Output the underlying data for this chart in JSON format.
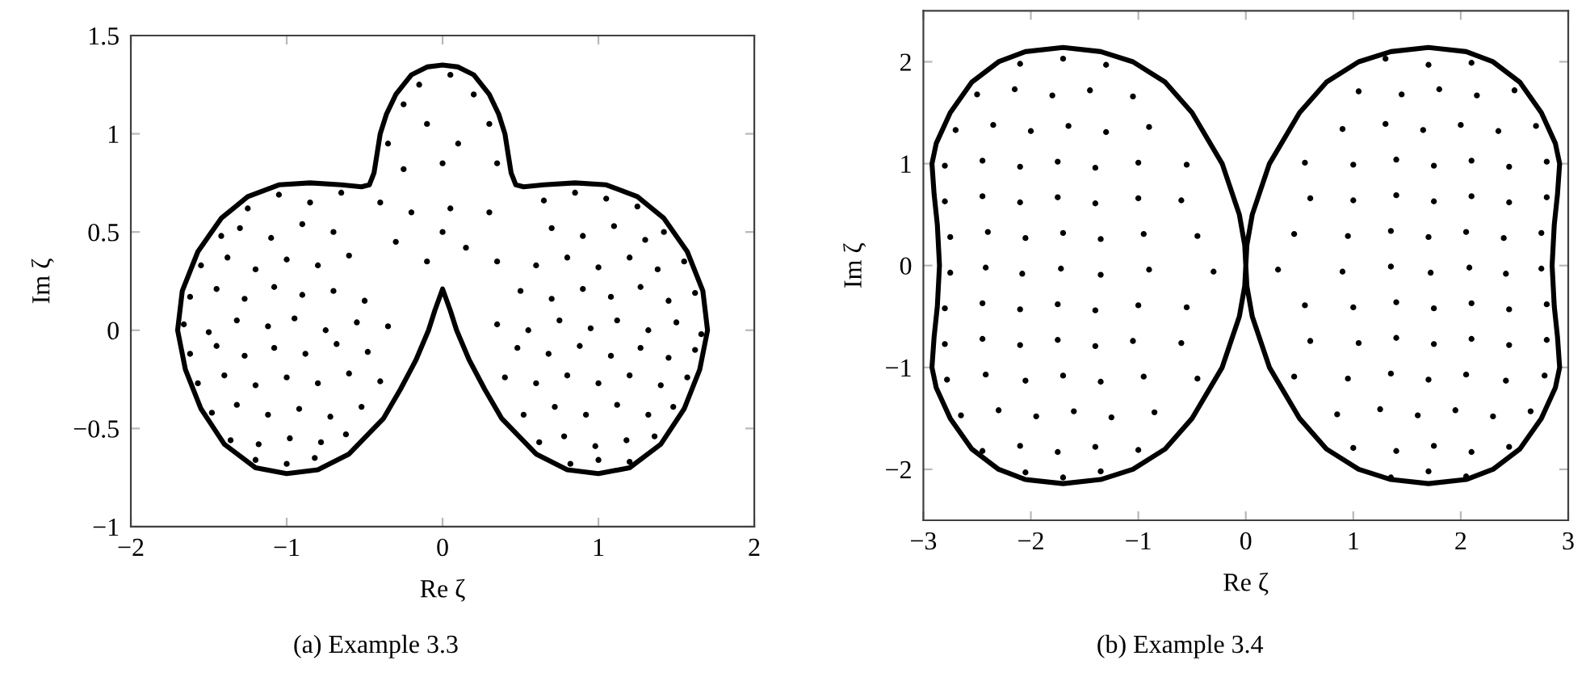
{
  "chart_data": [
    {
      "type": "scatter",
      "title": "(a) Example 3.3",
      "xlabel": "Re ζ",
      "ylabel": "Im ζ",
      "xlim": [
        -2,
        2
      ],
      "ylim": [
        -1,
        1.5
      ],
      "xticks": [
        -2,
        -1,
        0,
        1,
        2
      ],
      "yticks": [
        -1,
        -0.5,
        0,
        0.5,
        1,
        1.5
      ],
      "series": [
        {
          "color": "#000000",
          "marker": "circle",
          "x": [
            -1.25,
            -1.05,
            -0.85,
            -0.65,
            -1.42,
            -1.3,
            -1.1,
            -0.9,
            -0.7,
            -1.55,
            -1.38,
            -1.2,
            -1.0,
            -0.8,
            -0.6,
            -1.62,
            -1.45,
            -1.27,
            -1.08,
            -0.9,
            -0.7,
            -0.5,
            -1.66,
            -1.5,
            -1.32,
            -1.12,
            -0.95,
            -0.75,
            -0.55,
            -0.35,
            -1.62,
            -1.45,
            -1.27,
            -1.08,
            -0.88,
            -0.68,
            -0.48,
            -1.57,
            -1.4,
            -1.2,
            -1.0,
            -0.8,
            -0.6,
            -0.4,
            -1.48,
            -1.32,
            -1.12,
            -0.92,
            -0.72,
            -0.52,
            -1.36,
            -1.18,
            -0.98,
            -0.78,
            -0.62,
            -1.2,
            -1.0,
            -0.82,
            1.25,
            1.05,
            0.85,
            0.65,
            1.42,
            1.3,
            1.1,
            0.9,
            0.7,
            1.55,
            1.38,
            1.2,
            1.0,
            0.8,
            0.6,
            1.62,
            1.45,
            1.27,
            1.08,
            0.9,
            0.7,
            0.5,
            1.66,
            1.5,
            1.32,
            1.12,
            0.95,
            0.75,
            0.55,
            0.35,
            1.62,
            1.45,
            1.27,
            1.08,
            0.88,
            0.68,
            0.48,
            1.57,
            1.4,
            1.2,
            1.0,
            0.8,
            0.6,
            0.4,
            1.48,
            1.32,
            1.12,
            0.92,
            0.72,
            0.52,
            1.36,
            1.18,
            0.98,
            0.78,
            0.62,
            1.2,
            1.0,
            0.82,
            -0.25,
            -0.15,
            0.05,
            0.2,
            0.3,
            -0.35,
            -0.1,
            0.1,
            0.35,
            -0.25,
            0.0,
            -0.4,
            -0.2,
            0.05,
            0.3,
            -0.3,
            0.15,
            -0.1,
            0.35,
            0.0
          ],
          "values": [
            0.62,
            0.69,
            0.65,
            0.7,
            0.48,
            0.52,
            0.47,
            0.54,
            0.5,
            0.33,
            0.37,
            0.31,
            0.36,
            0.33,
            0.38,
            0.17,
            0.21,
            0.16,
            0.22,
            0.18,
            0.2,
            0.15,
            0.03,
            -0.01,
            0.05,
            0.02,
            0.06,
            0.0,
            0.04,
            0.02,
            -0.12,
            -0.08,
            -0.13,
            -0.09,
            -0.12,
            -0.07,
            -0.11,
            -0.27,
            -0.23,
            -0.28,
            -0.24,
            -0.27,
            -0.22,
            -0.26,
            -0.42,
            -0.38,
            -0.43,
            -0.4,
            -0.44,
            -0.39,
            -0.56,
            -0.58,
            -0.55,
            -0.57,
            -0.53,
            -0.66,
            -0.68,
            -0.65,
            0.63,
            0.67,
            0.7,
            0.66,
            0.5,
            0.46,
            0.53,
            0.48,
            0.52,
            0.35,
            0.31,
            0.37,
            0.32,
            0.37,
            0.33,
            0.19,
            0.15,
            0.22,
            0.17,
            0.21,
            0.16,
            0.2,
            -0.02,
            0.04,
            0.0,
            0.05,
            0.01,
            0.05,
            0.0,
            0.03,
            -0.1,
            -0.14,
            -0.09,
            -0.13,
            -0.08,
            -0.12,
            -0.09,
            -0.24,
            -0.28,
            -0.23,
            -0.27,
            -0.23,
            -0.27,
            -0.24,
            -0.39,
            -0.43,
            -0.38,
            -0.43,
            -0.39,
            -0.43,
            -0.54,
            -0.56,
            -0.59,
            -0.54,
            -0.57,
            -0.67,
            -0.66,
            -0.68,
            1.15,
            1.25,
            1.3,
            1.2,
            1.05,
            0.95,
            1.05,
            0.95,
            0.85,
            0.82,
            0.85,
            0.65,
            0.6,
            0.62,
            0.6,
            0.45,
            0.42,
            0.35,
            0.35,
            0.5
          ]
        },
        {
          "type": "line",
          "color": "#000000",
          "line_style": "solid",
          "x": [
            -1.7,
            -1.67,
            -1.57,
            -1.42,
            -1.25,
            -1.05,
            -0.85,
            -0.65,
            -0.52,
            -0.47,
            -0.44,
            -0.42,
            -0.4,
            -0.36,
            -0.3,
            -0.2,
            -0.1,
            0,
            0.1,
            0.2,
            0.3,
            0.36,
            0.4,
            0.42,
            0.44,
            0.47,
            0.52,
            0.65,
            0.85,
            1.05,
            1.25,
            1.42,
            1.57,
            1.67,
            1.7,
            null,
            -1.7,
            -1.65,
            -1.55,
            -1.4,
            -1.2,
            -1.0,
            -0.8,
            -0.6,
            -0.38,
            -0.27,
            -0.17,
            -0.09,
            -0.05,
            0,
            0.05,
            0.09,
            0.17,
            0.27,
            0.38,
            0.6,
            0.8,
            1.0,
            1.2,
            1.4,
            1.55,
            1.65,
            1.7
          ],
          "values": [
            0.0,
            0.2,
            0.4,
            0.57,
            0.68,
            0.74,
            0.75,
            0.74,
            0.73,
            0.74,
            0.8,
            0.9,
            1.0,
            1.1,
            1.2,
            1.3,
            1.34,
            1.35,
            1.34,
            1.3,
            1.2,
            1.1,
            1.0,
            0.9,
            0.8,
            0.74,
            0.73,
            0.74,
            0.75,
            0.74,
            0.68,
            0.57,
            0.4,
            0.2,
            0.0,
            null,
            0.0,
            -0.2,
            -0.4,
            -0.58,
            -0.7,
            -0.73,
            -0.71,
            -0.63,
            -0.45,
            -0.3,
            -0.15,
            0.0,
            0.1,
            0.21,
            0.1,
            0.0,
            -0.15,
            -0.3,
            -0.45,
            -0.63,
            -0.71,
            -0.73,
            -0.7,
            -0.58,
            -0.4,
            -0.2,
            0.0
          ]
        }
      ]
    },
    {
      "type": "scatter",
      "title": "(b) Example 3.4",
      "xlabel": "Re ζ",
      "ylabel": "Im ζ",
      "xlim": [
        -3,
        3
      ],
      "ylim": [
        -2.5,
        2.5
      ],
      "xticks": [
        -3,
        -2,
        -1,
        0,
        1,
        2,
        3
      ],
      "yticks": [
        -2,
        -1,
        0,
        1,
        2
      ],
      "series": [
        {
          "color": "#000000",
          "marker": "circle",
          "x": [
            -2.1,
            -1.7,
            -1.3,
            -2.5,
            -2.15,
            -1.8,
            -1.45,
            -1.05,
            -2.7,
            -2.35,
            -2.0,
            -1.65,
            -1.3,
            -0.9,
            -2.8,
            -2.45,
            -2.1,
            -1.75,
            -1.4,
            -1.0,
            -0.55,
            -2.8,
            -2.45,
            -2.1,
            -1.75,
            -1.4,
            -1.0,
            -0.6,
            -2.75,
            -2.4,
            -2.05,
            -1.7,
            -1.35,
            -0.95,
            -0.45,
            -2.75,
            -2.42,
            -2.08,
            -1.72,
            -1.35,
            -0.9,
            -0.3,
            -2.8,
            -2.45,
            -2.1,
            -1.75,
            -1.4,
            -1.0,
            -0.55,
            -2.8,
            -2.45,
            -2.1,
            -1.75,
            -1.4,
            -1.05,
            -0.6,
            -2.78,
            -2.42,
            -2.05,
            -1.7,
            -1.35,
            -0.95,
            -0.45,
            -2.65,
            -2.3,
            -1.95,
            -1.6,
            -1.25,
            -0.85,
            -2.45,
            -2.1,
            -1.75,
            -1.4,
            -1.0,
            -2.05,
            -1.7,
            -1.35,
            2.1,
            1.7,
            1.3,
            2.5,
            2.15,
            1.8,
            1.45,
            1.05,
            2.7,
            2.35,
            2.0,
            1.65,
            1.3,
            0.9,
            2.8,
            2.45,
            2.1,
            1.75,
            1.4,
            1.0,
            0.55,
            2.8,
            2.45,
            2.1,
            1.75,
            1.4,
            1.0,
            0.6,
            2.75,
            2.4,
            2.05,
            1.7,
            1.35,
            0.95,
            0.45,
            2.75,
            2.42,
            2.08,
            1.72,
            1.35,
            0.9,
            0.3,
            2.8,
            2.45,
            2.1,
            1.75,
            1.4,
            1.0,
            0.55,
            2.8,
            2.45,
            2.1,
            1.75,
            1.4,
            1.05,
            0.6,
            2.78,
            2.42,
            2.05,
            1.7,
            1.35,
            0.95,
            0.45,
            2.65,
            2.3,
            1.95,
            1.6,
            1.25,
            0.85,
            2.45,
            2.1,
            1.75,
            1.4,
            1.0,
            2.05,
            1.7,
            1.35
          ],
          "values": [
            1.98,
            2.03,
            1.97,
            1.68,
            1.73,
            1.67,
            1.72,
            1.66,
            1.33,
            1.38,
            1.32,
            1.37,
            1.31,
            1.36,
            0.98,
            1.03,
            0.97,
            1.02,
            0.96,
            1.01,
            0.99,
            0.63,
            0.68,
            0.62,
            0.67,
            0.61,
            0.66,
            0.64,
            0.28,
            0.33,
            0.27,
            0.32,
            0.26,
            0.31,
            0.29,
            -0.07,
            -0.02,
            -0.08,
            -0.03,
            -0.09,
            -0.04,
            -0.06,
            -0.42,
            -0.37,
            -0.43,
            -0.38,
            -0.44,
            -0.39,
            -0.41,
            -0.77,
            -0.72,
            -0.78,
            -0.73,
            -0.79,
            -0.74,
            -0.76,
            -1.12,
            -1.07,
            -1.13,
            -1.08,
            -1.14,
            -1.09,
            -1.11,
            -1.47,
            -1.42,
            -1.48,
            -1.43,
            -1.49,
            -1.44,
            -1.82,
            -1.77,
            -1.83,
            -1.78,
            -1.81,
            -2.03,
            -2.08,
            -2.02,
            1.99,
            1.97,
            2.03,
            1.72,
            1.67,
            1.73,
            1.68,
            1.71,
            1.37,
            1.32,
            1.38,
            1.33,
            1.39,
            1.34,
            1.02,
            0.97,
            1.03,
            0.98,
            1.04,
            0.99,
            1.01,
            0.67,
            0.62,
            0.68,
            0.63,
            0.69,
            0.64,
            0.66,
            0.32,
            0.27,
            0.33,
            0.28,
            0.34,
            0.29,
            0.31,
            -0.03,
            -0.08,
            -0.02,
            -0.07,
            -0.01,
            -0.06,
            -0.04,
            -0.38,
            -0.43,
            -0.37,
            -0.42,
            -0.36,
            -0.41,
            -0.39,
            -0.73,
            -0.78,
            -0.72,
            -0.77,
            -0.71,
            -0.76,
            -0.74,
            -1.08,
            -1.13,
            -1.07,
            -1.12,
            -1.06,
            -1.11,
            -1.09,
            -1.43,
            -1.48,
            -1.42,
            -1.47,
            -1.41,
            -1.46,
            -1.78,
            -1.83,
            -1.77,
            -1.82,
            -1.79,
            -2.07,
            -2.02,
            -2.08
          ]
        },
        {
          "type": "line",
          "color": "#000000",
          "line_style": "solid",
          "x": [
            -2.85,
            -2.87,
            -2.9,
            -2.92,
            -2.88,
            -2.75,
            -2.55,
            -2.3,
            -2.05,
            -1.7,
            -1.35,
            -1.05,
            -0.75,
            -0.5,
            -0.22,
            -0.06,
            -0.01,
            0,
            0.01,
            0.06,
            0.22,
            0.5,
            0.75,
            1.05,
            1.35,
            1.7,
            2.05,
            2.3,
            2.55,
            2.75,
            2.88,
            2.92,
            2.9,
            2.87,
            2.85,
            null,
            -2.85,
            -2.87,
            -2.9,
            -2.92,
            -2.88,
            -2.75,
            -2.55,
            -2.3,
            -2.05,
            -1.7,
            -1.35,
            -1.05,
            -0.75,
            -0.5,
            -0.22,
            -0.06,
            -0.01,
            0,
            0.01,
            0.06,
            0.22,
            0.5,
            0.75,
            1.05,
            1.35,
            1.7,
            2.05,
            2.3,
            2.55,
            2.75,
            2.88,
            2.92,
            2.9,
            2.87,
            2.85
          ],
          "values": [
            0.0,
            0.4,
            0.7,
            1.0,
            1.2,
            1.5,
            1.8,
            2.0,
            2.1,
            2.14,
            2.1,
            2.0,
            1.8,
            1.5,
            1.0,
            0.5,
            0.2,
            0.0,
            -0.2,
            -0.5,
            -1.0,
            -1.5,
            -1.8,
            -2.0,
            -2.1,
            -2.14,
            -2.1,
            -2.0,
            -1.8,
            -1.5,
            -1.2,
            -1.0,
            -0.7,
            -0.4,
            0.0,
            null,
            0.0,
            -0.4,
            -0.7,
            -1.0,
            -1.2,
            -1.5,
            -1.8,
            -2.0,
            -2.1,
            -2.14,
            -2.1,
            -2.0,
            -1.8,
            -1.5,
            -1.0,
            -0.5,
            -0.2,
            0.0,
            0.2,
            0.5,
            1.0,
            1.5,
            1.8,
            2.0,
            2.1,
            2.14,
            2.1,
            2.0,
            1.8,
            1.5,
            1.2,
            1.0,
            0.7,
            0.4,
            0.0
          ]
        }
      ]
    }
  ]
}
